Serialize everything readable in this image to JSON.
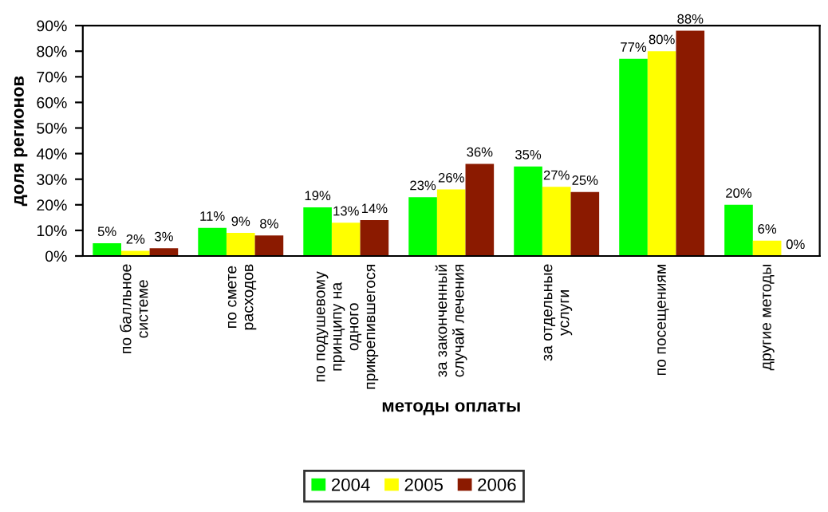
{
  "chart_data": {
    "type": "bar",
    "xlabel": "методы оплаты",
    "ylabel": "доля регионов",
    "categories": [
      "по балльное\nсистеме",
      "по смете\nрасходов",
      "по подушевому\nпринципу на\nодного\nприкрепившегося",
      "за законченный\nслучай лечения",
      "за отдельные\nуслуги",
      "по посещениям",
      "другие методы"
    ],
    "series": [
      {
        "name": "2004",
        "color": "#00ff00",
        "values": [
          5,
          11,
          19,
          23,
          35,
          77,
          20
        ]
      },
      {
        "name": "2005",
        "color": "#ffff00",
        "values": [
          2,
          9,
          13,
          26,
          27,
          80,
          6
        ]
      },
      {
        "name": "2006",
        "color": "#8b1a00",
        "values": [
          3,
          8,
          14,
          36,
          25,
          88,
          0
        ]
      }
    ],
    "value_labels": [
      [
        "5%",
        "11%",
        "19%",
        "23%",
        "35%",
        "77%",
        "20%"
      ],
      [
        "2%",
        "9%",
        "13%",
        "26%",
        "27%",
        "80%",
        "6%"
      ],
      [
        "3%",
        "8%",
        "14%",
        "36%",
        "25%",
        "88%",
        "0%"
      ]
    ],
    "ylim": [
      0,
      90
    ],
    "yticks": [
      {
        "value": 0,
        "label": "0%"
      },
      {
        "value": 10,
        "label": "10%"
      },
      {
        "value": 20,
        "label": "20%"
      },
      {
        "value": 30,
        "label": "30%"
      },
      {
        "value": 40,
        "label": "40%"
      },
      {
        "value": 50,
        "label": "50%"
      },
      {
        "value": 60,
        "label": "60%"
      },
      {
        "value": 70,
        "label": "70%"
      },
      {
        "value": 80,
        "label": "80%"
      },
      {
        "value": 90,
        "label": "90%"
      }
    ],
    "legend": "bottom",
    "grid": false
  }
}
